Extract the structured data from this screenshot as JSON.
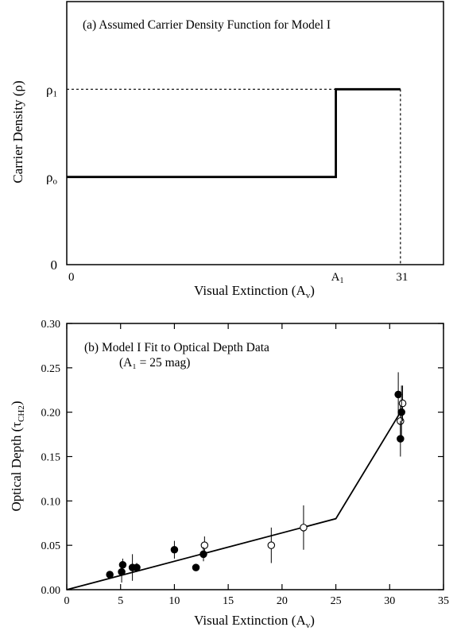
{
  "chart_data": [
    {
      "type": "line",
      "title": "(a) Assumed Carrier Density Function for Model I",
      "xlabel": "Visual Extinction (A",
      "xlabel_sub": "v",
      "xlabel_close": ")",
      "ylabel": "Carrier Density (ρ)",
      "x_ticks": [
        {
          "value": 0,
          "label": "0"
        },
        {
          "value": 25,
          "label": "A",
          "sub": "1"
        },
        {
          "value": 31,
          "label": "31"
        }
      ],
      "y_ticks": [
        {
          "value": 0,
          "label": "0"
        },
        {
          "value": 0.5,
          "label": "ρ",
          "sub": "o"
        },
        {
          "value": 1,
          "label": "ρ",
          "sub": "1"
        }
      ],
      "xlim": [
        0,
        35
      ],
      "ylim": [
        0,
        1.5
      ],
      "series": [
        {
          "x": [
            0,
            25,
            25,
            31
          ],
          "y": [
            0.5,
            0.5,
            1,
            1
          ]
        }
      ],
      "reference_lines": {
        "h_level": 1,
        "v_at": 31
      }
    },
    {
      "type": "scatter",
      "title": "(b) Model I Fit to Optical Depth Data",
      "subtitle": "(A₁ = 25 mag)",
      "xlabel": "Visual Extinction (A",
      "xlabel_sub": "v",
      "xlabel_close": ")",
      "ylabel": "Optical Depth (τ",
      "ylabel_sub": "CH2",
      "ylabel_close": ")",
      "xlim": [
        0,
        35
      ],
      "ylim": [
        0,
        0.3
      ],
      "x_ticks": [
        0,
        5,
        10,
        15,
        20,
        25,
        30,
        35
      ],
      "y_ticks": [
        "0.00",
        "0.05",
        "0.10",
        "0.15",
        "0.20",
        "0.25",
        "0.30"
      ],
      "model_line": {
        "x": [
          0,
          25,
          31
        ],
        "y": [
          0,
          0.08,
          0.2
        ]
      },
      "filled_points": [
        {
          "x": 4,
          "y": 0.017,
          "err": 0.003
        },
        {
          "x": 5.1,
          "y": 0.02,
          "err": 0.012
        },
        {
          "x": 5.2,
          "y": 0.028,
          "err": 0.007
        },
        {
          "x": 6.1,
          "y": 0.025,
          "err": 0.015
        },
        {
          "x": 6.5,
          "y": 0.025,
          "err": 0.005
        },
        {
          "x": 10,
          "y": 0.045,
          "err": 0.01
        },
        {
          "x": 12,
          "y": 0.025,
          "err": 0
        },
        {
          "x": 12.7,
          "y": 0.04,
          "err": 0.008
        },
        {
          "x": 30.8,
          "y": 0.22,
          "err": 0.025
        },
        {
          "x": 31,
          "y": 0.17,
          "err": 0.02
        },
        {
          "x": 31.1,
          "y": 0.2,
          "err": 0.03
        }
      ],
      "open_points": [
        {
          "x": 12.8,
          "y": 0.05,
          "err": 0.01
        },
        {
          "x": 19,
          "y": 0.05,
          "err": 0.02
        },
        {
          "x": 22,
          "y": 0.07,
          "err": 0.025
        },
        {
          "x": 31,
          "y": 0.19,
          "err": 0.02
        },
        {
          "x": 31.2,
          "y": 0.21,
          "err": 0.02
        }
      ]
    }
  ]
}
